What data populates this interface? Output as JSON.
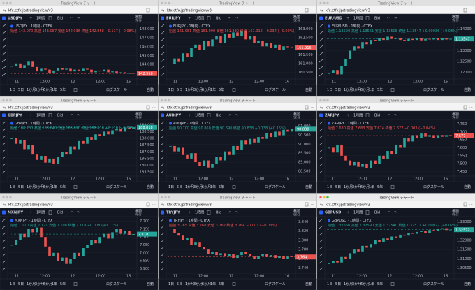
{
  "ui": {
    "window_title": "TradingView チャート",
    "url": "kfx.ctfx.jp/tradingview/v3",
    "interval": "1時間",
    "price_type": "Bid",
    "layout_name": "無題",
    "save": "保存",
    "ranges": [
      "1日",
      "5日",
      "1か月",
      "3か月",
      "6か月",
      "1年",
      "5年"
    ],
    "log_scale": "ログスケール",
    "auto": "自動",
    "time_labels": [
      "11",
      "12:00",
      "12",
      "12:00",
      "16"
    ]
  },
  "panels": [
    {
      "symbol": "USDJPY",
      "header": "USDJPY · 1時間 · CTFX",
      "ohlc": "始値 143.070 高値 143.087 安値 142.936 終値 142.958 −0.117 (−0.08%)",
      "ylim": [
        142.5,
        148.6
      ],
      "yticks": [
        {
          "value": 148,
          "label": "148.000"
        },
        {
          "value": 147,
          "label": "147.000"
        },
        {
          "value": 146,
          "label": "146.000"
        },
        {
          "value": 145,
          "label": "145.000"
        },
        {
          "value": 144,
          "label": "144.000"
        },
        {
          "value": 143,
          "label": "143.000"
        }
      ],
      "last": {
        "value": 142.958,
        "label": "142.958"
      },
      "closes": [
        143.8,
        144.1,
        143.6,
        143.9,
        144.3,
        143.7,
        143.2,
        143.5,
        143.4,
        143.0,
        143.3,
        143.6,
        143.4,
        143.5,
        143.2,
        143.4,
        143.3,
        143.5,
        143.4,
        143.1,
        143.3,
        143.2,
        143.4,
        143.1,
        143.2,
        143.0,
        143.1,
        142.95,
        143.0,
        142.958
      ]
    },
    {
      "symbol": "EURJPY",
      "header": "EURJPY · 1時間 · CTFX",
      "ohlc": "始値 161.951 高値 161.990 安値 161.880 終値 161.916 −0.034 (−0.02%)",
      "ylim": [
        160.2,
        163.3
      ],
      "yticks": [
        {
          "value": 163,
          "label": "163.000"
        },
        {
          "value": 162.5,
          "label": "162.500"
        },
        {
          "value": 162,
          "label": "162.000"
        },
        {
          "value": 161.5,
          "label": "161.500"
        },
        {
          "value": 161,
          "label": "161.000"
        },
        {
          "value": 160.5,
          "label": "160.500"
        }
      ],
      "last": {
        "value": 161.916,
        "label": "161.916"
      },
      "closes": [
        161.0,
        161.3,
        161.1,
        161.6,
        161.4,
        161.9,
        162.1,
        161.8,
        162.3,
        162.0,
        162.4,
        162.6,
        162.2,
        162.7,
        162.5,
        162.8,
        162.6,
        162.9,
        162.4,
        162.6,
        162.2,
        162.3,
        162.0,
        162.2,
        161.9,
        162.1,
        161.8,
        162.0,
        161.95,
        161.916
      ]
    },
    {
      "symbol": "EUR/USD",
      "header": "EUR/USD · 1時間 · CTFX",
      "ohlc": "始値 1.13520 高値 1.13561 安値 1.13508 終値 1.13547 +0.00036 (+0.03%)",
      "ylim": [
        1.1175,
        1.1425
      ],
      "yticks": [
        {
          "value": 1.14,
          "label": "1.14000"
        },
        {
          "value": 1.135,
          "label": "1.13500"
        },
        {
          "value": 1.13,
          "label": "1.13000"
        },
        {
          "value": 1.125,
          "label": "1.12500"
        },
        {
          "value": 1.12,
          "label": "1.12000"
        }
      ],
      "last": {
        "value": 1.13547,
        "label": "1.13547"
      },
      "closes": [
        1.1195,
        1.121,
        1.119,
        1.123,
        1.126,
        1.13,
        1.132,
        1.131,
        1.134,
        1.133,
        1.135,
        1.1345,
        1.136,
        1.135,
        1.1365,
        1.1355,
        1.136,
        1.135,
        1.1345,
        1.1355,
        1.135,
        1.1358,
        1.1348,
        1.1355,
        1.1352,
        1.136,
        1.135,
        1.1357,
        1.1352,
        1.13547
      ]
    },
    {
      "symbol": "GBPJPY",
      "header": "GBPJPY · 1時間 · CTFX",
      "ohlc": "始値 188.700 高値 188.840 安値 188.690 終値 188.818 +0.118 (+0.06%)",
      "ylim": [
        185.3,
        189.3
      ],
      "yticks": [
        {
          "value": 189,
          "label": "189.000"
        },
        {
          "value": 188.5,
          "label": "188.500"
        },
        {
          "value": 188,
          "label": "188.000"
        },
        {
          "value": 187.5,
          "label": "187.500"
        },
        {
          "value": 187,
          "label": "187.000"
        },
        {
          "value": 186.5,
          "label": "186.500"
        },
        {
          "value": 186,
          "label": "186.000"
        },
        {
          "value": 185.5,
          "label": "185.500"
        }
      ],
      "last": {
        "value": 188.818,
        "label": "188.818"
      },
      "closes": [
        188.0,
        187.6,
        187.9,
        187.2,
        187.5,
        186.8,
        186.4,
        186.7,
        186.2,
        186.5,
        186.1,
        186.6,
        187.0,
        186.8,
        187.4,
        187.2,
        187.8,
        187.6,
        188.1,
        187.9,
        188.3,
        188.2,
        188.5,
        188.3,
        188.6,
        188.7,
        188.5,
        188.8,
        188.7,
        188.818
      ]
    },
    {
      "symbol": "AUDJPY",
      "header": "AUDJPY · 1時間 · CTFX",
      "ohlc": "始値 90.700 高値 90.860 安値 90.690 終値 90.838 +0.138 (+0.15%)",
      "ylim": [
        88.3,
        91.3
      ],
      "yticks": [
        {
          "value": 91,
          "label": "91.000"
        },
        {
          "value": 90.5,
          "label": "90.500"
        },
        {
          "value": 90,
          "label": "90.000"
        },
        {
          "value": 89.5,
          "label": "89.500"
        },
        {
          "value": 89,
          "label": "89.000"
        },
        {
          "value": 88.5,
          "label": "88.500"
        }
      ],
      "last": {
        "value": 90.838,
        "label": "90.838"
      },
      "closes": [
        89.9,
        89.6,
        89.8,
        89.4,
        89.2,
        89.5,
        89.0,
        88.8,
        89.1,
        88.7,
        88.9,
        89.3,
        89.1,
        89.6,
        89.4,
        89.9,
        89.7,
        90.2,
        90.0,
        90.3,
        90.1,
        90.4,
        90.3,
        90.6,
        90.4,
        90.7,
        90.5,
        90.8,
        90.7,
        90.838
      ]
    },
    {
      "symbol": "ZARJPY",
      "header": "ZARJPY · 1時間 · CTFX",
      "ohlc": "始値 7.680 高値 7.683 安値 7.674 終値 7.677 −0.003 (−0.04%)",
      "ylim": [
        7.43,
        7.77
      ],
      "yticks": [
        {
          "value": 7.75,
          "label": "7.750"
        },
        {
          "value": 7.7,
          "label": "7.700"
        },
        {
          "value": 7.65,
          "label": "7.650"
        },
        {
          "value": 7.6,
          "label": "7.600"
        },
        {
          "value": 7.55,
          "label": "7.550"
        },
        {
          "value": 7.5,
          "label": "7.500"
        },
        {
          "value": 7.45,
          "label": "7.450"
        }
      ],
      "last": {
        "value": 7.677,
        "label": "7.677"
      },
      "closes": [
        7.6,
        7.57,
        7.62,
        7.55,
        7.52,
        7.49,
        7.51,
        7.48,
        7.5,
        7.47,
        7.52,
        7.5,
        7.55,
        7.53,
        7.58,
        7.56,
        7.62,
        7.6,
        7.66,
        7.64,
        7.68,
        7.66,
        7.69,
        7.67,
        7.68,
        7.66,
        7.68,
        7.67,
        7.68,
        7.677
      ]
    },
    {
      "symbol": "MXNJPY",
      "header": "MXNJPY · 1時間 · CTFX",
      "ohlc": "始値 7.110 高値 7.121 安値 7.108 終値 7.118 +0.008 (+0.11%)",
      "ylim": [
        6.88,
        7.22
      ],
      "yticks": [
        {
          "value": 7.2,
          "label": "7.200"
        },
        {
          "value": 7.15,
          "label": "7.150"
        },
        {
          "value": 7.1,
          "label": "7.100"
        },
        {
          "value": 7.05,
          "label": "7.050"
        },
        {
          "value": 7,
          "label": "7.000"
        },
        {
          "value": 6.95,
          "label": "6.950"
        },
        {
          "value": 6.9,
          "label": "6.900"
        }
      ],
      "last": {
        "value": 7.118,
        "label": "7.118"
      },
      "closes": [
        7.05,
        7.08,
        7.12,
        7.1,
        7.15,
        7.13,
        7.16,
        7.1,
        7.04,
        6.98,
        7.0,
        6.95,
        6.97,
        6.93,
        6.96,
        7.0,
        6.98,
        7.03,
        7.05,
        7.08,
        7.06,
        7.1,
        7.12,
        7.09,
        7.13,
        7.15,
        7.12,
        7.14,
        7.11,
        7.118
      ]
    },
    {
      "symbol": "TRYJPY",
      "header": "TRYJPY · 1時間 · CTFX",
      "ohlc": "始値 3.765 高値 3.768 安値 3.762 終値 3.764 −0.001 (−0.03%)",
      "ylim": [
        3.732,
        3.848
      ],
      "yticks": [
        {
          "value": 3.84,
          "label": "3.840"
        },
        {
          "value": 3.82,
          "label": "3.820"
        },
        {
          "value": 3.8,
          "label": "3.800"
        },
        {
          "value": 3.78,
          "label": "3.780"
        },
        {
          "value": 3.76,
          "label": "3.760"
        },
        {
          "value": 3.74,
          "label": "3.740"
        }
      ],
      "last": {
        "value": 3.764,
        "label": "3.764"
      },
      "closes": [
        3.825,
        3.815,
        3.81,
        3.8,
        3.805,
        3.79,
        3.795,
        3.785,
        3.78,
        3.77,
        3.775,
        3.768,
        3.772,
        3.765,
        3.77,
        3.762,
        3.768,
        3.775,
        3.77,
        3.765,
        3.76,
        3.766,
        3.77,
        3.764,
        3.768,
        3.762,
        3.766,
        3.76,
        3.765,
        3.764
      ]
    },
    {
      "symbol": "GBPUSD",
      "header": "GBPUSD · 1時間 · CTFX",
      "ohlc": "始値 1.32550 高値 1.32590 安値 1.32540 終値 1.32572 +0.00022 (+0.02%)",
      "ylim": [
        1.303,
        1.332
      ],
      "yticks": [
        {
          "value": 1.33,
          "label": "1.33000"
        },
        {
          "value": 1.325,
          "label": "1.32500"
        },
        {
          "value": 1.32,
          "label": "1.32000"
        },
        {
          "value": 1.315,
          "label": "1.31500"
        },
        {
          "value": 1.31,
          "label": "1.31000"
        },
        {
          "value": 1.305,
          "label": "1.30500"
        }
      ],
      "last": {
        "value": 1.32572,
        "label": "1.32572"
      },
      "closes": [
        1.3075,
        1.309,
        1.308,
        1.311,
        1.31,
        1.313,
        1.315,
        1.314,
        1.317,
        1.316,
        1.318,
        1.32,
        1.319,
        1.321,
        1.32,
        1.322,
        1.3215,
        1.323,
        1.3225,
        1.324,
        1.3235,
        1.3245,
        1.325,
        1.324,
        1.3255,
        1.325,
        1.326,
        1.3265,
        1.3255,
        1.32572
      ]
    }
  ]
}
